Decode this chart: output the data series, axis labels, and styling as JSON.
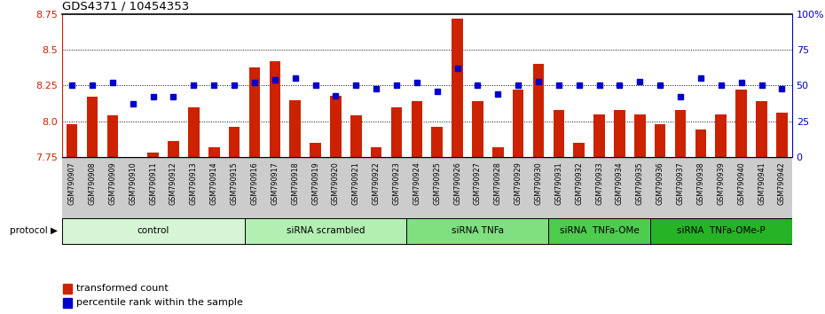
{
  "title": "GDS4371 / 10454353",
  "samples": [
    "GSM790907",
    "GSM790908",
    "GSM790909",
    "GSM790910",
    "GSM790911",
    "GSM790912",
    "GSM790913",
    "GSM790914",
    "GSM790915",
    "GSM790916",
    "GSM790917",
    "GSM790918",
    "GSM790919",
    "GSM790920",
    "GSM790921",
    "GSM790922",
    "GSM790923",
    "GSM790924",
    "GSM790925",
    "GSM790926",
    "GSM790927",
    "GSM790928",
    "GSM790929",
    "GSM790930",
    "GSM790931",
    "GSM790932",
    "GSM790933",
    "GSM790934",
    "GSM790935",
    "GSM790936",
    "GSM790937",
    "GSM790938",
    "GSM790939",
    "GSM790940",
    "GSM790941",
    "GSM790942"
  ],
  "bar_values": [
    7.98,
    8.17,
    8.04,
    7.75,
    7.78,
    7.86,
    8.1,
    7.82,
    7.96,
    8.38,
    8.42,
    8.15,
    7.85,
    8.18,
    8.04,
    7.82,
    8.1,
    8.14,
    7.96,
    8.72,
    8.14,
    7.82,
    8.22,
    8.4,
    8.08,
    7.85,
    8.05,
    8.08,
    8.05,
    7.98,
    8.08,
    7.94,
    8.05,
    8.22,
    8.14,
    8.06
  ],
  "percentile_values": [
    50,
    50,
    52,
    37,
    42,
    42,
    50,
    50,
    50,
    52,
    54,
    55,
    50,
    43,
    50,
    48,
    50,
    52,
    46,
    62,
    50,
    44,
    50,
    53,
    50,
    50,
    50,
    50,
    53,
    50,
    42,
    55,
    50,
    52,
    50,
    48
  ],
  "groups": [
    {
      "label": "control",
      "start": 0,
      "end": 9,
      "color": "#d6f5d6"
    },
    {
      "label": "siRNA scrambled",
      "start": 9,
      "end": 17,
      "color": "#b3eeb3"
    },
    {
      "label": "siRNA TNFa",
      "start": 17,
      "end": 24,
      "color": "#80df80"
    },
    {
      "label": "siRNA  TNFa-OMe",
      "start": 24,
      "end": 29,
      "color": "#4dcc4d"
    },
    {
      "label": "siRNA  TNFa-OMe-P",
      "start": 29,
      "end": 36,
      "color": "#26b326"
    }
  ],
  "ylim_left": [
    7.75,
    8.75
  ],
  "ylim_right": [
    0,
    100
  ],
  "yticks_left": [
    7.75,
    8.0,
    8.25,
    8.5,
    8.75
  ],
  "yticks_right": [
    0,
    25,
    50,
    75,
    100
  ],
  "hgrid_vals": [
    8.0,
    8.25,
    8.5
  ],
  "bar_color": "#cc2200",
  "marker_color": "#0000cc",
  "tick_bg": "#cccccc",
  "bg_color": "#ffffff"
}
